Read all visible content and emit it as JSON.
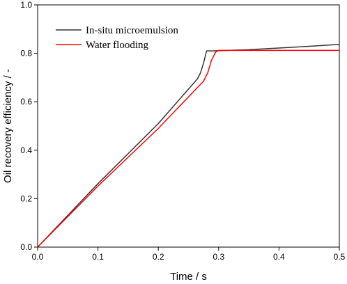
{
  "chart_data": {
    "type": "line",
    "title": "",
    "xlabel": "Time / s",
    "ylabel": "Oil recovery efficiency / -",
    "xlim": [
      0.0,
      0.5
    ],
    "ylim": [
      0.0,
      1.0
    ],
    "xticks": [
      "0.0",
      "0.1",
      "0.2",
      "0.3",
      "0.4",
      "0.5"
    ],
    "yticks": [
      "0.0",
      "0.2",
      "0.4",
      "0.6",
      "0.8",
      "1.0"
    ],
    "grid": false,
    "legend_position": "top-left",
    "series": [
      {
        "name": "In-situ microemulsion",
        "color": "#333333",
        "points": [
          [
            0.0,
            0.0
          ],
          [
            0.1,
            0.262
          ],
          [
            0.2,
            0.51
          ],
          [
            0.265,
            0.695
          ],
          [
            0.27,
            0.72
          ],
          [
            0.275,
            0.76
          ],
          [
            0.28,
            0.81
          ],
          [
            0.29,
            0.81
          ],
          [
            0.35,
            0.815
          ],
          [
            0.4,
            0.822
          ],
          [
            0.45,
            0.829
          ],
          [
            0.5,
            0.837
          ]
        ]
      },
      {
        "name": "Water flooding",
        "color": "#ff0000",
        "points": [
          [
            0.0,
            0.0
          ],
          [
            0.1,
            0.252
          ],
          [
            0.2,
            0.49
          ],
          [
            0.275,
            0.685
          ],
          [
            0.282,
            0.72
          ],
          [
            0.288,
            0.77
          ],
          [
            0.295,
            0.805
          ],
          [
            0.3,
            0.812
          ],
          [
            0.35,
            0.812
          ],
          [
            0.4,
            0.812
          ],
          [
            0.45,
            0.812
          ],
          [
            0.5,
            0.812
          ]
        ]
      }
    ]
  }
}
